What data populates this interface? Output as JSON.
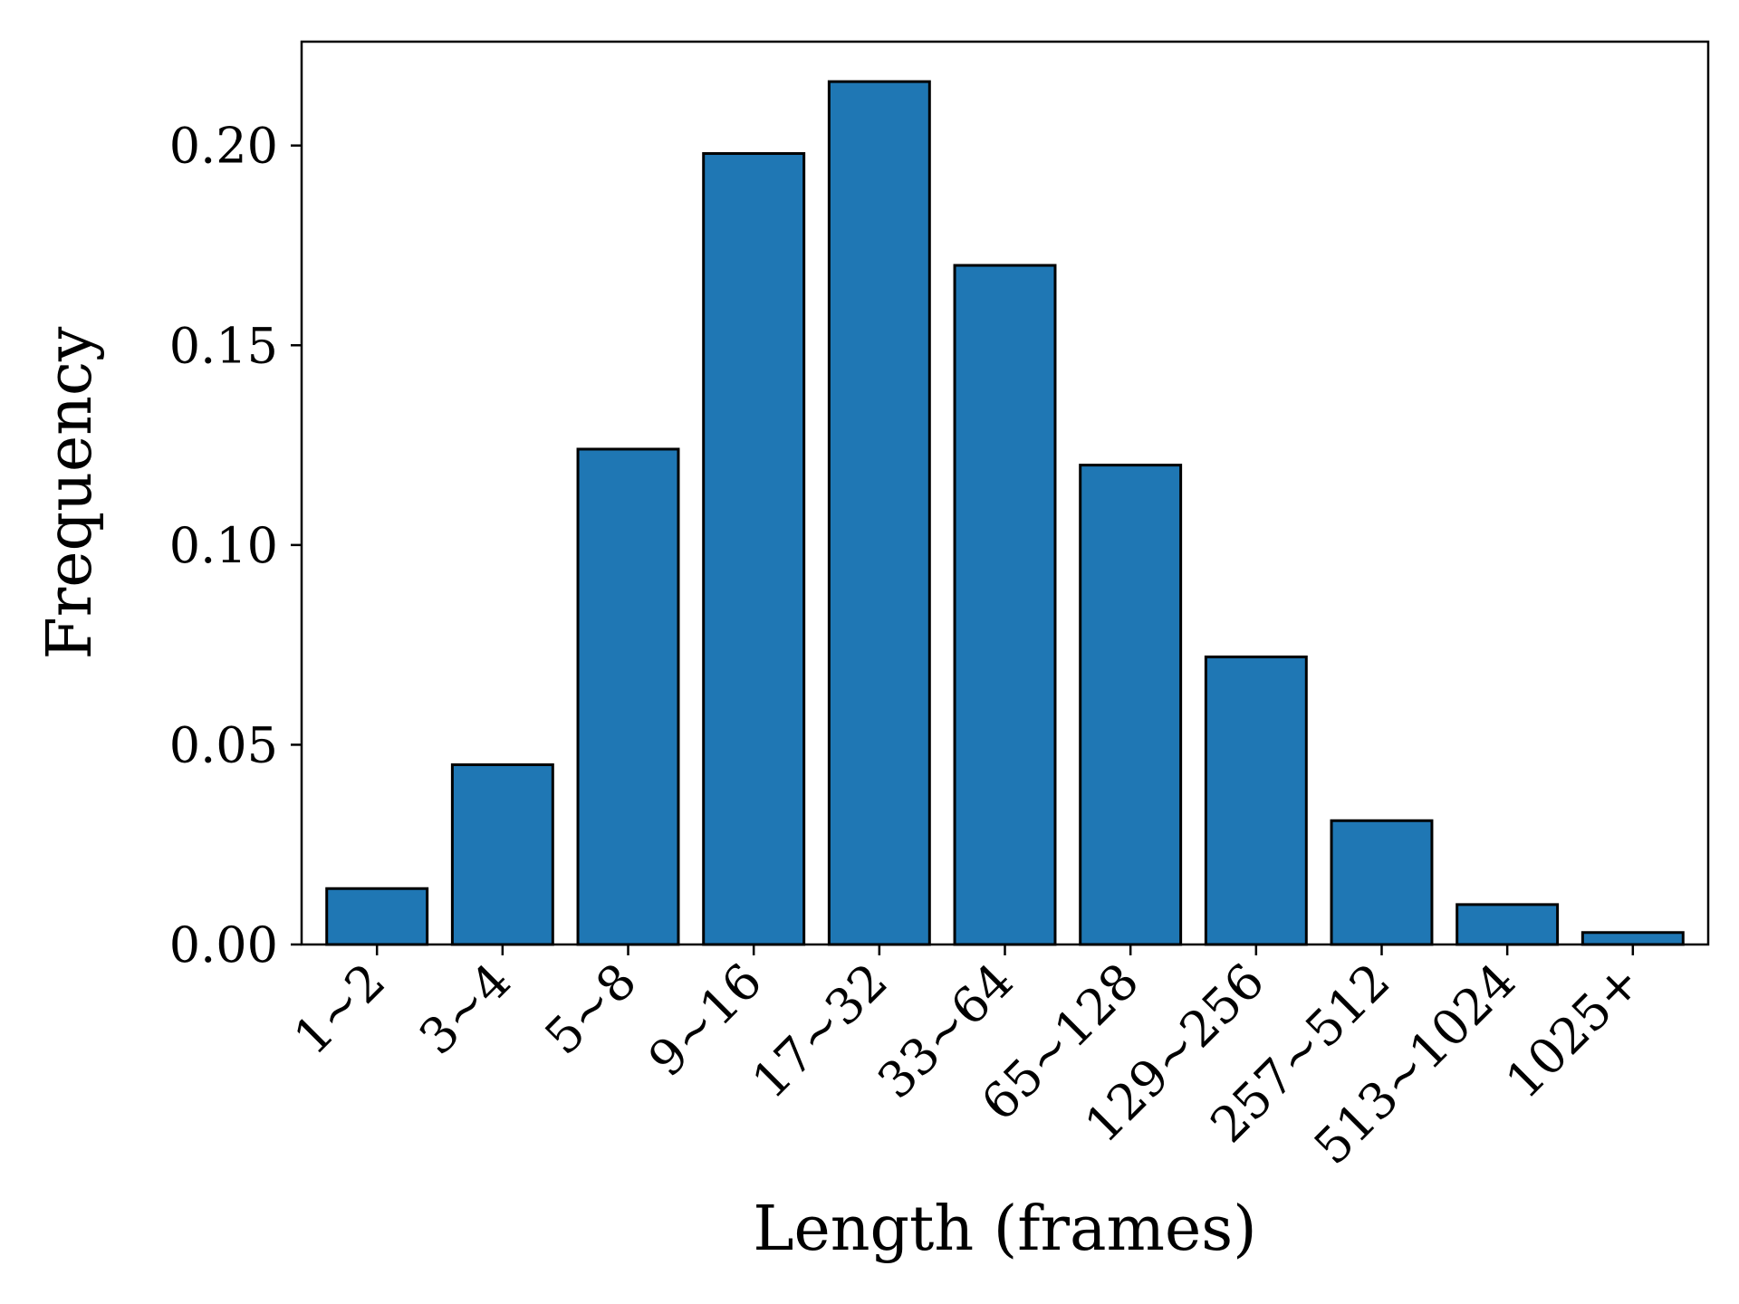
{
  "chart_data": {
    "type": "bar",
    "title": "",
    "xlabel": "Length (frames)",
    "ylabel": "Frequency",
    "categories": [
      "1~2",
      "3~4",
      "5~8",
      "9~16",
      "17~32",
      "33~64",
      "65~128",
      "129~256",
      "257~512",
      "513~1024",
      "1025+"
    ],
    "values": [
      0.014,
      0.045,
      0.124,
      0.198,
      0.216,
      0.17,
      0.12,
      0.072,
      0.031,
      0.01,
      0.003
    ],
    "ylim": [
      0,
      0.226
    ],
    "yticks": [
      0.0,
      0.05,
      0.1,
      0.15,
      0.2
    ],
    "ytick_labels": [
      "0.00",
      "0.05",
      "0.10",
      "0.15",
      "0.20"
    ],
    "grid": false,
    "bar_color": "#1f77b4",
    "edge_color": "#000000"
  }
}
